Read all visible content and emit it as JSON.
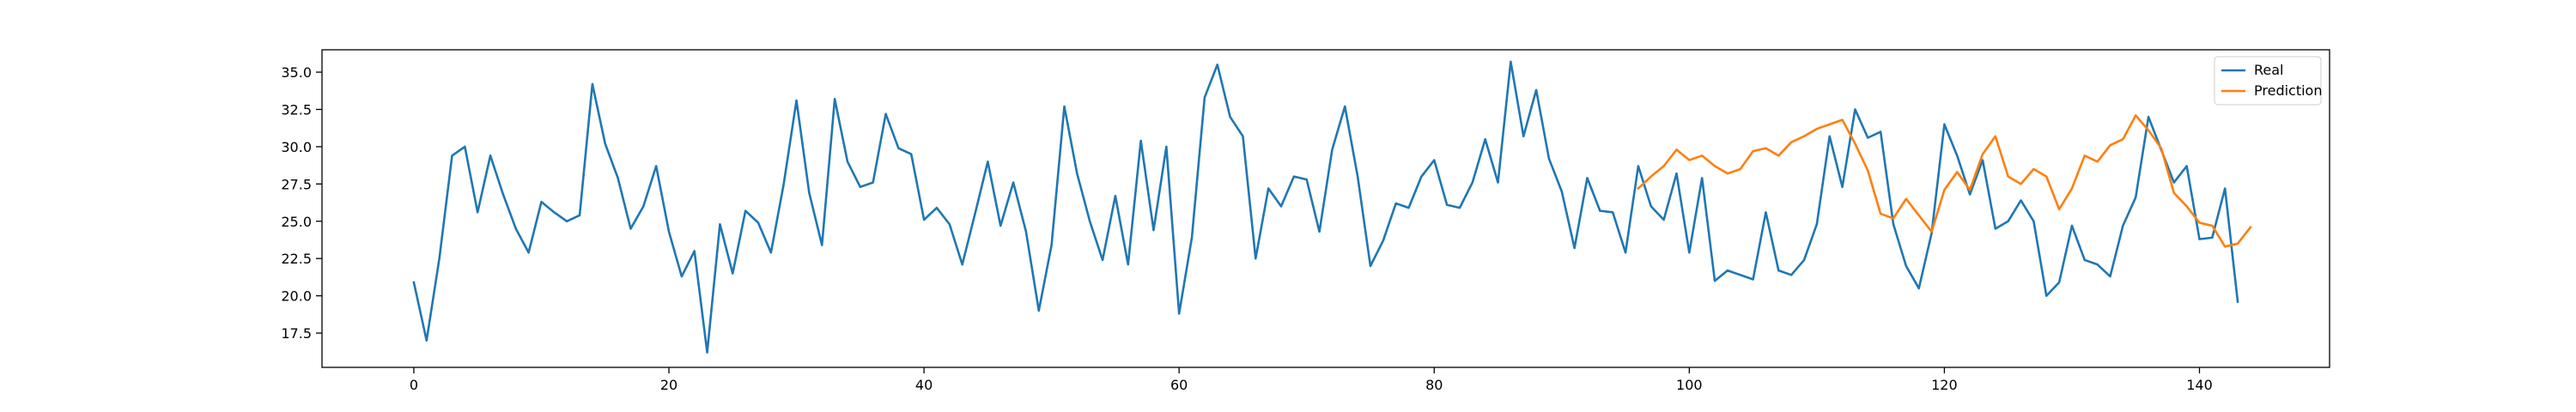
{
  "chart_data": {
    "type": "line",
    "title": "",
    "xlabel": "",
    "ylabel": "",
    "xlim": [
      -7.2,
      150.2
    ],
    "ylim": [
      15.2,
      36.5
    ],
    "xticks": [
      0,
      20,
      40,
      60,
      80,
      100,
      120,
      140
    ],
    "yticks": [
      17.5,
      20.0,
      22.5,
      25.0,
      27.5,
      30.0,
      32.5,
      35.0
    ],
    "grid": false,
    "legend_position": "top-right",
    "series": [
      {
        "name": "Real",
        "color": "#1f77b4",
        "x_start": 0,
        "values": [
          20.9,
          17.0,
          22.5,
          29.4,
          30.0,
          25.6,
          29.4,
          26.8,
          24.5,
          22.9,
          26.3,
          25.6,
          25.0,
          25.4,
          34.2,
          30.2,
          27.9,
          24.5,
          26.0,
          28.7,
          24.3,
          21.3,
          23.0,
          16.2,
          24.8,
          21.5,
          25.7,
          24.9,
          22.9,
          27.5,
          33.1,
          26.9,
          23.4,
          33.2,
          29.0,
          27.3,
          27.6,
          32.2,
          29.9,
          29.5,
          25.1,
          25.9,
          24.8,
          22.1,
          25.5,
          29.0,
          24.7,
          27.6,
          24.3,
          19.0,
          23.4,
          32.7,
          28.2,
          25.0,
          22.4,
          26.7,
          22.1,
          30.4,
          24.4,
          30.0,
          18.8,
          23.9,
          33.3,
          35.5,
          32.0,
          30.7,
          22.5,
          27.2,
          26.0,
          28.0,
          27.8,
          24.3,
          29.8,
          32.7,
          28.0,
          22.0,
          23.7,
          26.2,
          25.9,
          28.0,
          29.1,
          26.1,
          25.9,
          27.6,
          30.5,
          27.6,
          35.7,
          30.7,
          33.8,
          29.2,
          27.0,
          23.2,
          27.9,
          25.7,
          25.6,
          22.9,
          28.7,
          26.0,
          25.1,
          28.2,
          22.9,
          27.9,
          21.0,
          21.7,
          21.4,
          21.1,
          25.6,
          21.7,
          21.4,
          22.4,
          24.8,
          30.7,
          27.3,
          32.5,
          30.6,
          31.0,
          24.8,
          22.0,
          20.5,
          24.2,
          31.5,
          29.4,
          26.8,
          29.1,
          24.5,
          25.0,
          26.4,
          25.0,
          20.0,
          20.9,
          24.7,
          22.4,
          22.1,
          21.3,
          24.7,
          26.6,
          32.0,
          29.8,
          27.6,
          28.7,
          23.8,
          23.9,
          27.2,
          19.6
        ]
      },
      {
        "name": "Prediction",
        "color": "#ff7f0e",
        "x_start": 96,
        "values": [
          27.2,
          28.0,
          28.7,
          29.8,
          29.1,
          29.4,
          28.7,
          28.2,
          28.5,
          29.7,
          29.9,
          29.4,
          30.3,
          30.7,
          31.2,
          31.5,
          31.8,
          30.2,
          28.4,
          25.5,
          25.2,
          26.5,
          25.4,
          24.3,
          27.1,
          28.3,
          27.1,
          29.5,
          30.7,
          28.0,
          27.5,
          28.5,
          28.0,
          25.8,
          27.2,
          29.4,
          29.0,
          30.1,
          30.5,
          32.1,
          31.1,
          29.9,
          26.9,
          26.0,
          24.9,
          24.7,
          23.3,
          23.5,
          24.6
        ]
      }
    ]
  }
}
